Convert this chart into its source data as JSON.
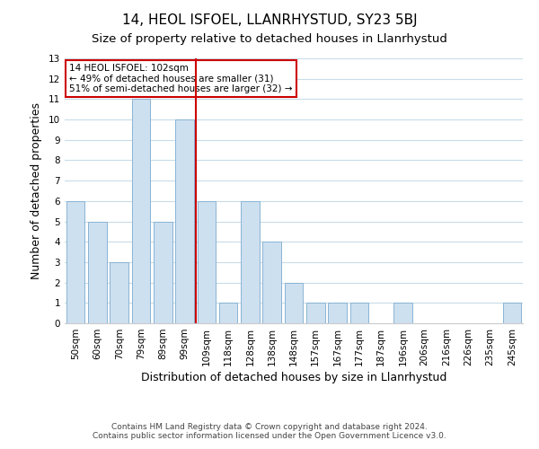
{
  "title1": "14, HEOL ISFOEL, LLANRHYSTUD, SY23 5BJ",
  "title2": "Size of property relative to detached houses in Llanrhystud",
  "xlabel": "Distribution of detached houses by size in Llanrhystud",
  "ylabel": "Number of detached properties",
  "bar_labels": [
    "50sqm",
    "60sqm",
    "70sqm",
    "79sqm",
    "89sqm",
    "99sqm",
    "109sqm",
    "118sqm",
    "128sqm",
    "138sqm",
    "148sqm",
    "157sqm",
    "167sqm",
    "177sqm",
    "187sqm",
    "196sqm",
    "206sqm",
    "216sqm",
    "226sqm",
    "235sqm",
    "245sqm"
  ],
  "bar_values": [
    6,
    5,
    3,
    11,
    5,
    10,
    6,
    1,
    6,
    4,
    2,
    1,
    1,
    1,
    0,
    1,
    0,
    0,
    0,
    0,
    1
  ],
  "bar_color": "#cde0f0",
  "bar_edge_color": "#8ab4d4",
  "ref_line_x": 5.5,
  "annotation_line1": "14 HEOL ISFOEL: 102sqm",
  "annotation_line2": "← 49% of detached houses are smaller (31)",
  "annotation_line3": "51% of semi-detached houses are larger (32) →",
  "annotation_box_color": "#ffffff",
  "annotation_box_edge": "#cc0000",
  "ref_line_color": "#cc0000",
  "ylim": [
    0,
    13
  ],
  "yticks": [
    0,
    1,
    2,
    3,
    4,
    5,
    6,
    7,
    8,
    9,
    10,
    11,
    12,
    13
  ],
  "footer1": "Contains HM Land Registry data © Crown copyright and database right 2024.",
  "footer2": "Contains public sector information licensed under the Open Government Licence v3.0.",
  "bg_color": "#ffffff",
  "grid_color": "#c8dce8",
  "title1_fontsize": 11,
  "title2_fontsize": 9.5,
  "xlabel_fontsize": 9,
  "ylabel_fontsize": 9,
  "tick_fontsize": 7.5,
  "annotation_fontsize": 7.5,
  "footer_fontsize": 6.5
}
